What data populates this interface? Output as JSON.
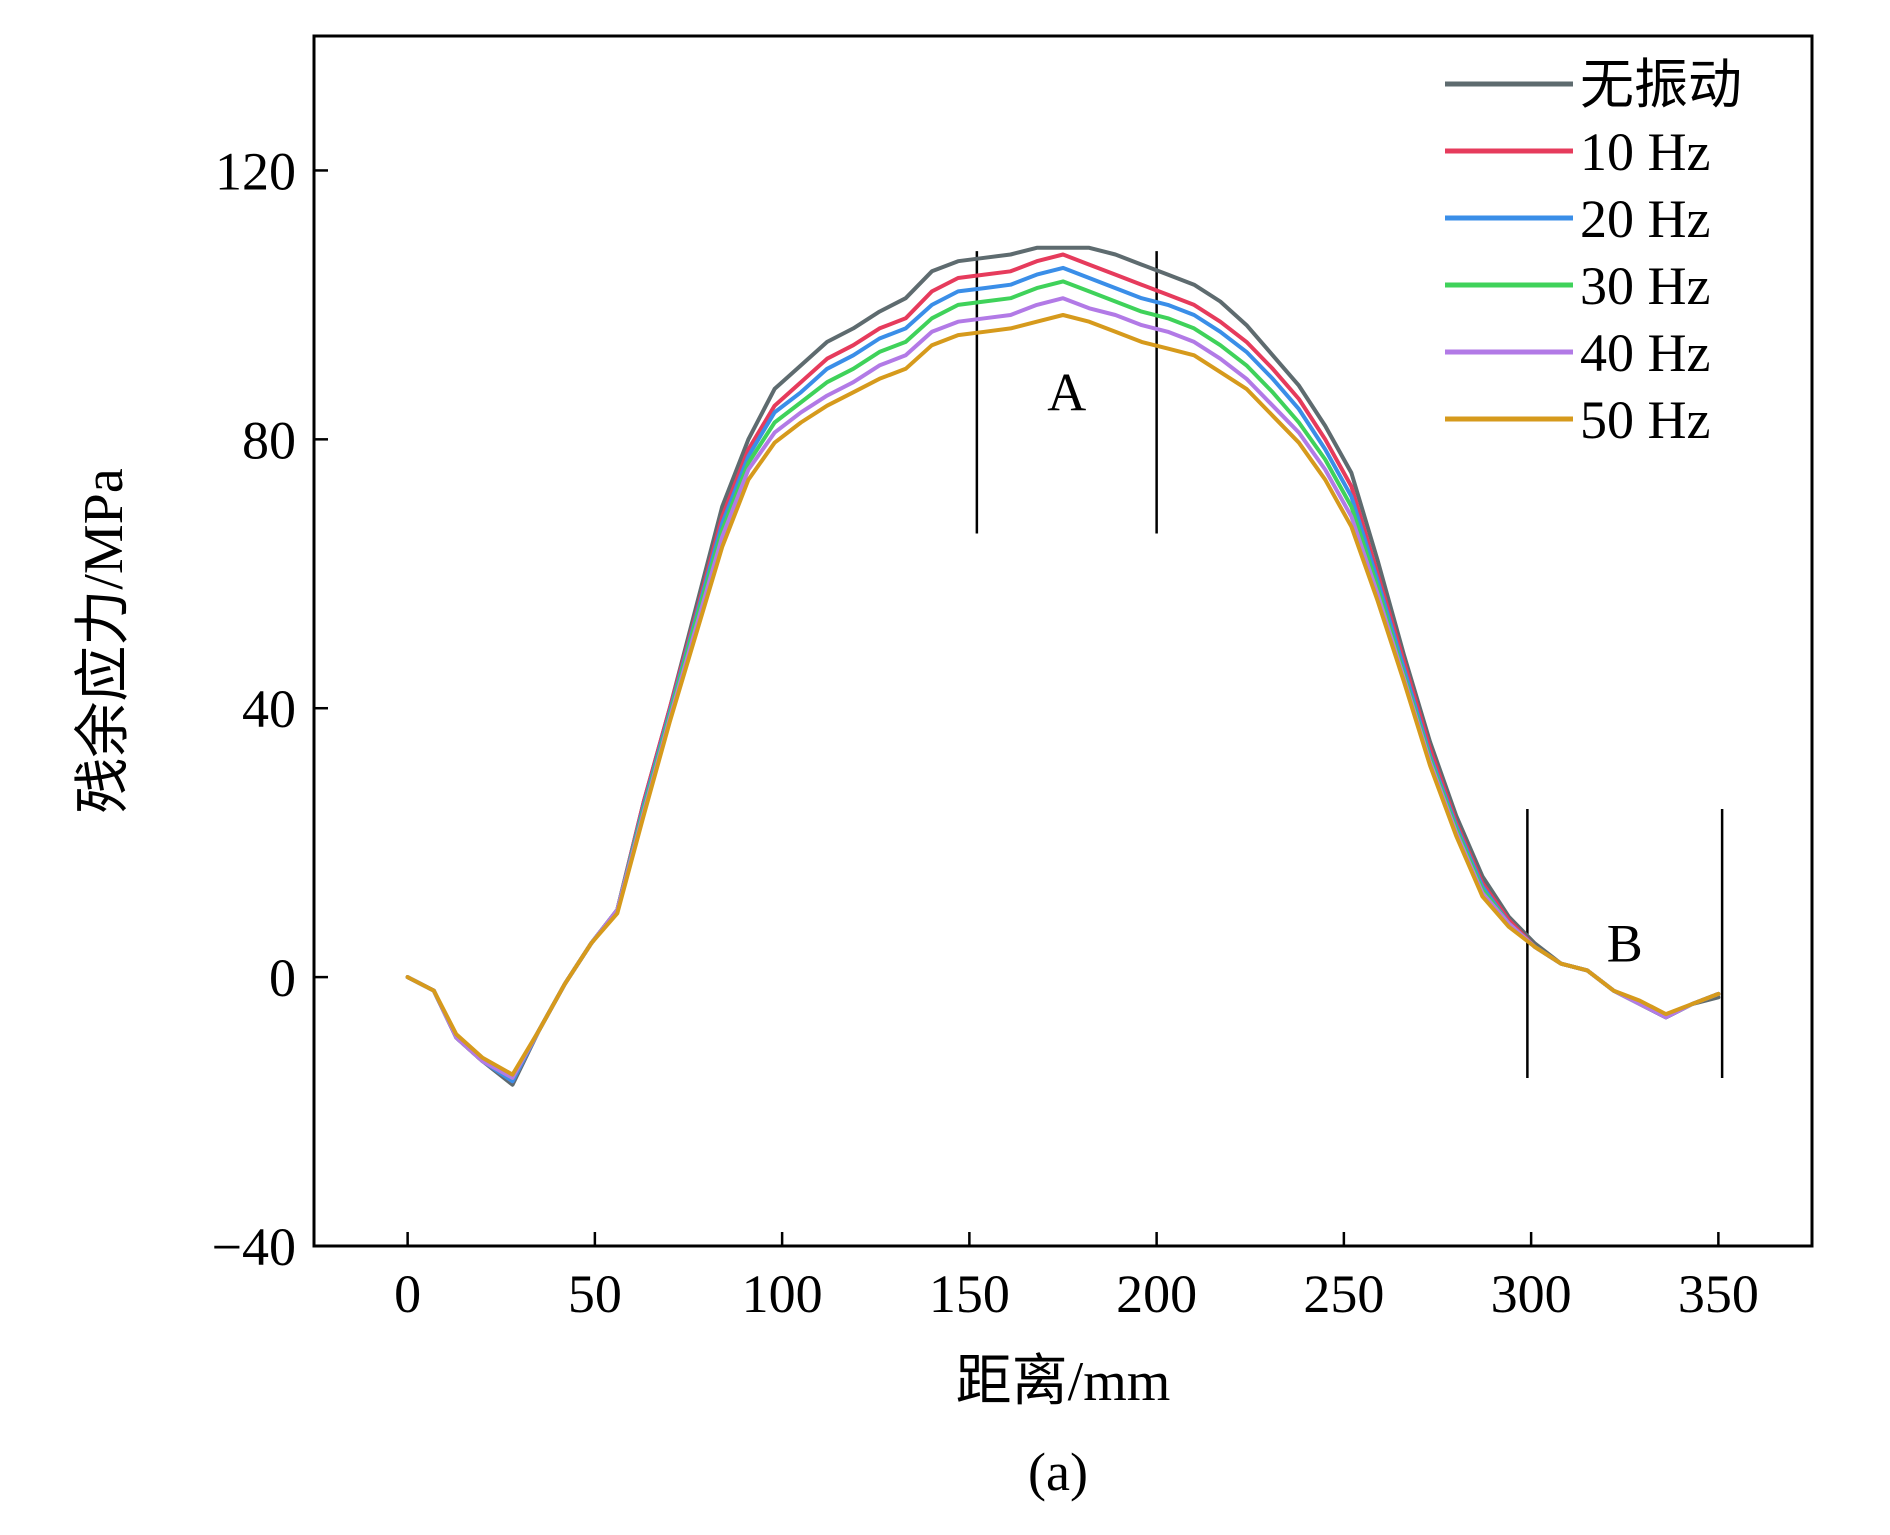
{
  "chart_data": {
    "type": "line",
    "title": "",
    "xlabel": "距离/mm",
    "ylabel": "残余应力/MPa",
    "caption": "(a)",
    "xlim": [
      -25,
      375
    ],
    "ylim": [
      -40,
      140
    ],
    "xticks": [
      0,
      50,
      100,
      150,
      200,
      250,
      300,
      350
    ],
    "yticks": [
      -40,
      0,
      40,
      80,
      120
    ],
    "ytick_labels": [
      "−40",
      "0",
      "40",
      "80",
      "120"
    ],
    "grid": false,
    "legend_position": "top-right",
    "regions": [
      {
        "label": "A",
        "x_start": 152,
        "x_end": 200,
        "y_top": 108,
        "y_bottom": 66
      },
      {
        "label": "B",
        "x_start": 299,
        "x_end": 351,
        "y_top": 25,
        "y_bottom": -15
      }
    ],
    "x": [
      0,
      7,
      13,
      20,
      28,
      35,
      42,
      49,
      56,
      63,
      70,
      77,
      84,
      91,
      98,
      105,
      112,
      119,
      126,
      133,
      140,
      147,
      154,
      161,
      168,
      175,
      182,
      189,
      196,
      203,
      210,
      217,
      224,
      231,
      238,
      245,
      252,
      259,
      266,
      273,
      280,
      287,
      294,
      301,
      308,
      315,
      322,
      329,
      336,
      343,
      350
    ],
    "series": [
      {
        "name": "无振动",
        "color": "#5e6b6f",
        "values": [
          0,
          -2,
          -9,
          -12.5,
          -16,
          -8,
          -1,
          5,
          10,
          26,
          40,
          55,
          70,
          80,
          87.5,
          91,
          94.5,
          96.5,
          99,
          101,
          105,
          106.5,
          107,
          107.5,
          108.5,
          108.5,
          108.5,
          107.5,
          106,
          104.5,
          103,
          100.5,
          97,
          92.5,
          88,
          82,
          75,
          62,
          48,
          35,
          24,
          15,
          9,
          5,
          2,
          1,
          -2,
          -4,
          -6,
          -4,
          -3
        ]
      },
      {
        "name": "10 Hz",
        "color": "#e63b5c",
        "values": [
          0,
          -2,
          -9,
          -12.5,
          -15.5,
          -8,
          -1,
          5,
          10,
          26,
          40,
          54,
          68.5,
          78.5,
          85,
          88.5,
          92,
          94,
          96.5,
          98,
          102,
          104,
          104.5,
          105,
          106.5,
          107.5,
          106,
          104.5,
          103,
          101.5,
          100,
          97.5,
          94.5,
          90.5,
          86,
          80,
          73,
          60,
          47,
          34,
          23,
          14,
          8.5,
          4.5,
          2,
          1,
          -2,
          -4,
          -6,
          -4,
          -2.5
        ]
      },
      {
        "name": "20 Hz",
        "color": "#3a8ee8",
        "values": [
          0,
          -2,
          -9,
          -12.5,
          -15.5,
          -8,
          -1,
          5,
          10,
          25.5,
          39.5,
          53.5,
          67.5,
          77.5,
          84,
          87,
          90.5,
          92.5,
          95,
          96.5,
          100,
          102,
          102.5,
          103,
          104.5,
          105.5,
          104,
          102.5,
          101,
          100,
          98.5,
          96,
          93,
          89,
          84.5,
          78.5,
          71.5,
          59,
          46,
          33,
          22.5,
          13.5,
          8,
          4.5,
          2,
          1,
          -2,
          -4,
          -6,
          -4,
          -2.5
        ]
      },
      {
        "name": "30 Hz",
        "color": "#3fd25a",
        "values": [
          0,
          -2,
          -9,
          -12.5,
          -15,
          -8,
          -1,
          5,
          10,
          25,
          39,
          53,
          66.5,
          76.5,
          82.5,
          85.5,
          88.5,
          90.5,
          93,
          94.5,
          98,
          100,
          100.5,
          101,
          102.5,
          103.5,
          102,
          100.5,
          99,
          98,
          96.5,
          94,
          91,
          87,
          82.5,
          77,
          70,
          58,
          45,
          32.5,
          22,
          13,
          8,
          4.5,
          2,
          1,
          -2,
          -4,
          -6,
          -4,
          -2.5
        ]
      },
      {
        "name": "40 Hz",
        "color": "#b27ae6",
        "values": [
          0,
          -2,
          -9,
          -12.5,
          -15,
          -8,
          -1,
          5,
          10,
          24.5,
          38.5,
          52,
          65.5,
          75.5,
          81,
          84,
          86.5,
          88.5,
          91,
          92.5,
          96,
          97.5,
          98,
          98.5,
          100,
          101,
          99.5,
          98.5,
          97,
          96,
          94.5,
          92,
          89,
          85,
          81,
          75.5,
          68.5,
          57,
          44.5,
          32,
          21.5,
          12.5,
          8,
          4.5,
          2,
          1,
          -2,
          -4,
          -6,
          -4,
          -2.5
        ]
      },
      {
        "name": "50 Hz",
        "color": "#d69a1c",
        "values": [
          0,
          -2,
          -8.5,
          -12,
          -14.5,
          -8,
          -1,
          5,
          9.5,
          24,
          38,
          51,
          64,
          74,
          79.5,
          82.5,
          85,
          87,
          89,
          90.5,
          94,
          95.5,
          96,
          96.5,
          97.5,
          98.5,
          97.5,
          96,
          94.5,
          93.5,
          92.5,
          90,
          87.5,
          83.5,
          79.5,
          74,
          67,
          56,
          44,
          31.5,
          21,
          12,
          7.5,
          4.5,
          2,
          1,
          -2,
          -3.5,
          -5.5,
          -4,
          -2.5
        ]
      }
    ]
  }
}
